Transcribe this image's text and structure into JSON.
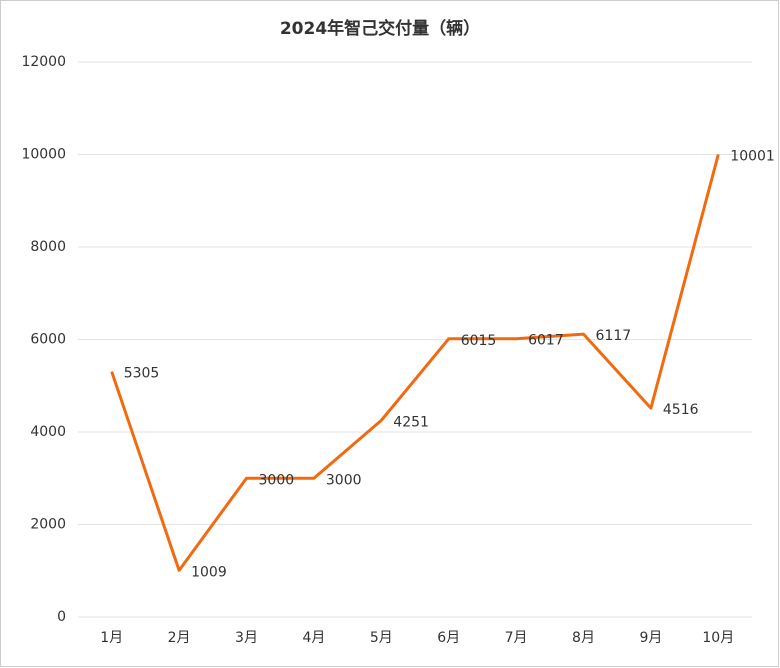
{
  "chart_data": {
    "type": "line",
    "title": "2024年智己交付量（辆）",
    "categories": [
      "1月",
      "2月",
      "3月",
      "4月",
      "5月",
      "6月",
      "7月",
      "8月",
      "9月",
      "10月"
    ],
    "values": [
      5305,
      1009,
      3000,
      3000,
      4251,
      6015,
      6017,
      6117,
      4516,
      10001
    ],
    "color": "#f26a10",
    "ylim": [
      0,
      12000
    ],
    "yticks": [
      0,
      2000,
      4000,
      6000,
      8000,
      10000,
      12000
    ],
    "grid": true
  }
}
